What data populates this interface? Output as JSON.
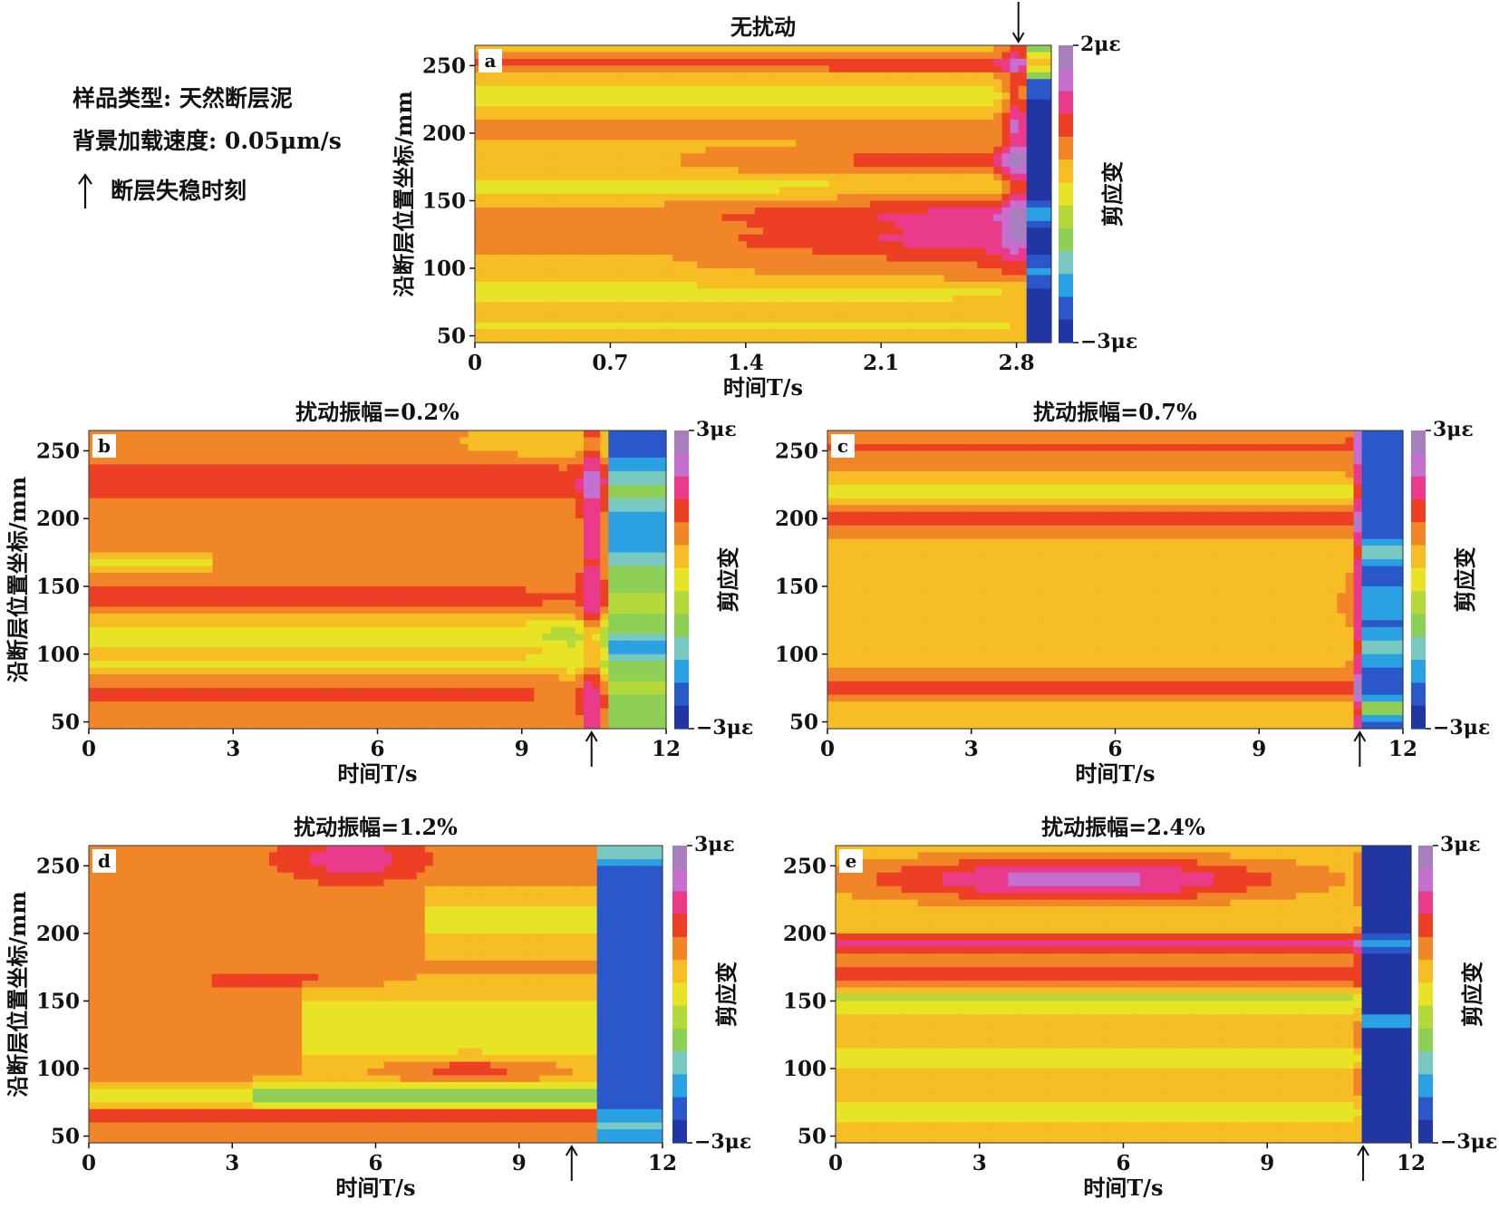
{
  "legend": {
    "sample_type": "样品类型: 天然断层泥",
    "loading_rate": "背景加载速度: 0.05μm/s",
    "arrow_note": "断层失稳时刻"
  },
  "colors": {
    "colormap": [
      "#2136a3",
      "#2a57c9",
      "#2aa1e3",
      "#79c9c2",
      "#8ecf55",
      "#b5d93a",
      "#e8e324",
      "#f6bd24",
      "#f08628",
      "#ec3f24",
      "#ea3a8a",
      "#c570d0",
      "#a77fbd"
    ]
  },
  "chart_data": [
    {
      "type": "heatmap",
      "panel": "a",
      "title": "无扰动",
      "xlabel": "时间T/s",
      "ylabel": "沿断层位置坐标/mm",
      "colorbar_label": "剪应变",
      "cbar_max_label": "2με",
      "cbar_min_label": "−3με",
      "cbar_range": [
        -3,
        2
      ],
      "xlim": [
        0,
        2.98
      ],
      "ylim": [
        45,
        265
      ],
      "xticks": [
        0,
        0.7,
        1.4,
        2.1,
        2.8
      ],
      "xtick_labels": [
        "0",
        "0.7",
        "1.4",
        "2.1",
        "2.8"
      ],
      "yticks": [
        50,
        100,
        150,
        200,
        250
      ],
      "ytick_labels": [
        "50",
        "100",
        "150",
        "200",
        "250"
      ],
      "instability_time": 2.81,
      "instability_arrow": "above"
    },
    {
      "type": "heatmap",
      "panel": "b",
      "title": "扰动振幅=0.2%",
      "xlabel": "时间T/s",
      "ylabel": "沿断层位置坐标/mm",
      "colorbar_label": "剪应变",
      "cbar_max_label": "3με",
      "cbar_min_label": "−3με",
      "cbar_range": [
        -3,
        3
      ],
      "xlim": [
        0,
        12
      ],
      "ylim": [
        45,
        265
      ],
      "xticks": [
        0,
        3,
        6,
        9,
        12
      ],
      "xtick_labels": [
        "0",
        "3",
        "6",
        "9",
        "12"
      ],
      "yticks": [
        50,
        100,
        150,
        200,
        250
      ],
      "ytick_labels": [
        "50",
        "100",
        "150",
        "200",
        "250"
      ],
      "instability_time": 10.45,
      "instability_arrow": "below"
    },
    {
      "type": "heatmap",
      "panel": "c",
      "title": "扰动振幅=0.7%",
      "xlabel": "时间T/s",
      "ylabel": "",
      "colorbar_label": "剪应变",
      "cbar_max_label": "3με",
      "cbar_min_label": "−3με",
      "cbar_range": [
        -3,
        3
      ],
      "xlim": [
        0,
        12
      ],
      "ylim": [
        45,
        265
      ],
      "xticks": [
        0,
        3,
        6,
        9,
        12
      ],
      "xtick_labels": [
        "0",
        "3",
        "6",
        "9",
        "12"
      ],
      "yticks": [
        50,
        100,
        150,
        200,
        250
      ],
      "ytick_labels": [
        "50",
        "100",
        "150",
        "200",
        "250"
      ],
      "instability_time": 11.1,
      "instability_arrow": "below"
    },
    {
      "type": "heatmap",
      "panel": "d",
      "title": "扰动振幅=1.2%",
      "xlabel": "时间T/s",
      "ylabel": "沿断层位置坐标/mm",
      "colorbar_label": "剪应变",
      "cbar_max_label": "3με",
      "cbar_min_label": "−3με",
      "cbar_range": [
        -3,
        3
      ],
      "xlim": [
        0,
        12
      ],
      "ylim": [
        45,
        265
      ],
      "xticks": [
        0,
        3,
        6,
        9,
        12
      ],
      "xtick_labels": [
        "0",
        "3",
        "6",
        "9",
        "12"
      ],
      "yticks": [
        50,
        100,
        150,
        200,
        250
      ],
      "ytick_labels": [
        "50",
        "100",
        "150",
        "200",
        "250"
      ],
      "instability_time": 10.1,
      "instability_arrow": "below"
    },
    {
      "type": "heatmap",
      "panel": "e",
      "title": "扰动振幅=2.4%",
      "xlabel": "时间T/s",
      "ylabel": "",
      "colorbar_label": "剪应变",
      "cbar_max_label": "3με",
      "cbar_min_label": "−3με",
      "cbar_range": [
        -3,
        3
      ],
      "xlim": [
        0,
        12
      ],
      "ylim": [
        45,
        265
      ],
      "xticks": [
        0,
        3,
        6,
        9,
        12
      ],
      "xtick_labels": [
        "0",
        "3",
        "6",
        "9",
        "12"
      ],
      "yticks": [
        50,
        100,
        150,
        200,
        250
      ],
      "ytick_labels": [
        "50",
        "100",
        "150",
        "200",
        "250"
      ],
      "instability_time": 11.0,
      "instability_arrow": "below"
    }
  ]
}
